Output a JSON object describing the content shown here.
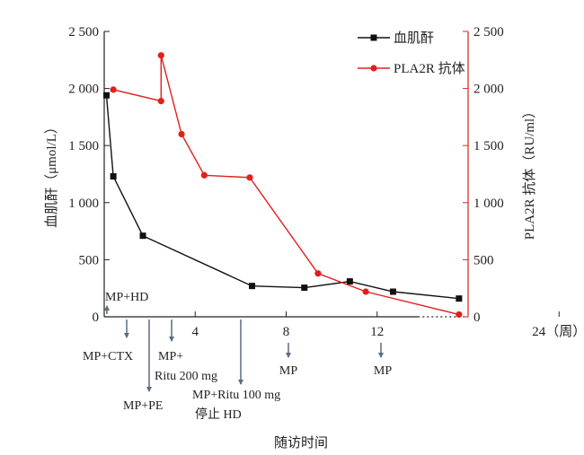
{
  "chart_data": {
    "type": "line",
    "xlabel": "随访时间",
    "ylabel_left": "血肌酐（μmol/L）",
    "ylabel_right": "PLA2R 抗体（RU/ml）",
    "x_ticks": [
      {
        "value": 4,
        "label": "4"
      },
      {
        "value": 8,
        "label": "8"
      },
      {
        "value": 12,
        "label": "12"
      },
      {
        "value": 20,
        "label": "24（周）"
      }
    ],
    "y_left": {
      "range": [
        0,
        2500
      ],
      "ticks": [
        {
          "value": 0,
          "label": "0"
        },
        {
          "value": 500,
          "label": "500"
        },
        {
          "value": 1000,
          "label": "1 000"
        },
        {
          "value": 1500,
          "label": "1 500"
        },
        {
          "value": 2000,
          "label": "2 000"
        },
        {
          "value": 2500,
          "label": "2 500"
        }
      ]
    },
    "y_right": {
      "range": [
        0,
        2500
      ],
      "ticks": [
        {
          "value": 0,
          "label": "0"
        },
        {
          "value": 500,
          "label": "500"
        },
        {
          "value": 1000,
          "label": "1 000"
        },
        {
          "value": 1500,
          "label": "1 500"
        },
        {
          "value": 2000,
          "label": "2 000"
        },
        {
          "value": 2500,
          "label": "2 500"
        }
      ]
    },
    "series": [
      {
        "name": "血肌酐",
        "axis": "left",
        "color": "#111111",
        "marker": "square",
        "points": [
          [
            0.1,
            1940
          ],
          [
            0.4,
            1230
          ],
          [
            1.7,
            710
          ],
          [
            6.5,
            270
          ],
          [
            8.8,
            255
          ],
          [
            10.8,
            310
          ],
          [
            12.7,
            220
          ],
          [
            15.6,
            160
          ]
        ]
      },
      {
        "name": "PLA2R 抗体",
        "axis": "right",
        "color": "#e0201b",
        "marker": "circle",
        "points": [
          [
            0.4,
            1990
          ],
          [
            2.5,
            1890
          ],
          [
            2.5,
            2290
          ],
          [
            3.4,
            1600
          ],
          [
            4.4,
            1240
          ],
          [
            6.4,
            1220
          ],
          [
            9.4,
            380
          ],
          [
            11.5,
            220
          ],
          [
            15.6,
            20
          ]
        ]
      }
    ],
    "legend_position": "top-right",
    "annotations": [
      {
        "lines": [
          "MP+HD"
        ],
        "x": 0.0,
        "arrow": "up"
      },
      {
        "lines": [
          "MP+CTX"
        ],
        "x": 0.9,
        "arrow": "down"
      },
      {
        "lines": [
          "MP+PE"
        ],
        "x": 1.9,
        "arrow": "down"
      },
      {
        "lines": [
          "MP+",
          "Ritu 200 mg"
        ],
        "x": 2.9,
        "arrow": "down"
      },
      {
        "lines": [
          "MP+Ritu 100 mg",
          "停止 HD"
        ],
        "x": 6.0,
        "arrow": "down"
      },
      {
        "lines": [
          "MP"
        ],
        "x": 8.0,
        "arrow": "down"
      },
      {
        "lines": [
          "MP"
        ],
        "x": 12.0,
        "arrow": "down"
      }
    ]
  }
}
